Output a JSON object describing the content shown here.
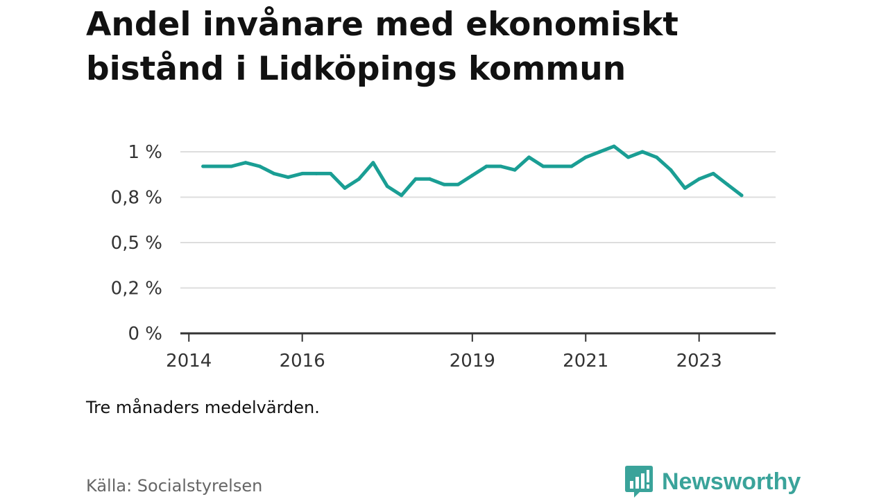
{
  "title": "Andel invånare med ekonomiskt bistånd i Lidköpings kommun",
  "note": "Tre månaders medelvärden.",
  "source": "Källa: Socialstyrelsen",
  "brand": {
    "name": "Newsworthy",
    "icon": "bar-chart-speech-bubble-icon",
    "color": "#3aa39a"
  },
  "chart_data": {
    "type": "line",
    "title": "Andel invånare med ekonomiskt bistånd i Lidköpings kommun",
    "xlabel": "",
    "ylabel": "",
    "ylim": [
      0,
      1.0
    ],
    "grid": true,
    "y_ticks": [
      {
        "value": 0,
        "label": "0 %"
      },
      {
        "value": 0.25,
        "label": "0,2 %"
      },
      {
        "value": 0.5,
        "label": "0,5 %"
      },
      {
        "value": 0.75,
        "label": "0,8 %"
      },
      {
        "value": 1.0,
        "label": "1 %"
      }
    ],
    "x_ticks": [
      {
        "value": 2014.0,
        "label": "2014"
      },
      {
        "value": 2016.0,
        "label": "2016"
      },
      {
        "value": 2019.0,
        "label": "2019"
      },
      {
        "value": 2021.0,
        "label": "2021"
      },
      {
        "value": 2023.0,
        "label": "2023"
      }
    ],
    "xlim": [
      2013.85,
      2024.35
    ],
    "color": "#1a9e94",
    "series": [
      {
        "x": [
          2014.25,
          2014.5,
          2014.75,
          2015.0,
          2015.25,
          2015.5,
          2015.75,
          2016.0,
          2016.25,
          2016.5,
          2016.75,
          2017.0,
          2017.25,
          2017.5,
          2017.75,
          2018.0,
          2018.25,
          2018.5,
          2018.75,
          2019.0,
          2019.25,
          2019.5,
          2019.75,
          2020.0,
          2020.25,
          2020.5,
          2020.75,
          2021.0,
          2021.25,
          2021.5,
          2021.75,
          2022.0,
          2022.25,
          2022.5,
          2022.75,
          2023.0,
          2023.25,
          2023.5,
          2023.75
        ],
        "values": [
          0.92,
          0.92,
          0.92,
          0.94,
          0.92,
          0.88,
          0.86,
          0.88,
          0.88,
          0.88,
          0.8,
          0.85,
          0.94,
          0.81,
          0.76,
          0.85,
          0.85,
          0.82,
          0.82,
          0.87,
          0.92,
          0.92,
          0.9,
          0.97,
          0.92,
          0.92,
          0.92,
          0.97,
          1.0,
          1.03,
          0.97,
          1.0,
          0.97,
          0.9,
          0.8,
          0.85,
          0.88,
          0.82,
          0.76
        ]
      }
    ]
  }
}
